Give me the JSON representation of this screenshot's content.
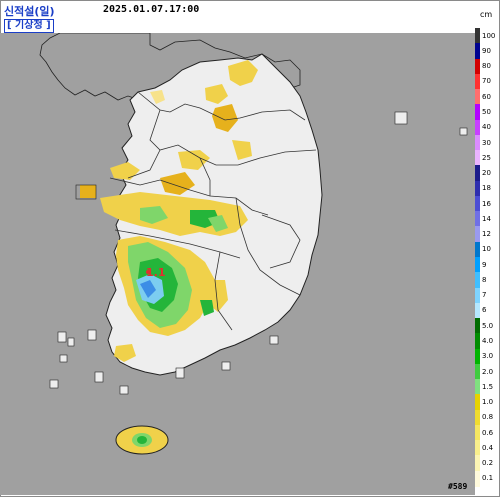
{
  "header": {
    "title": "신적설(일)",
    "timestamp": "2025.01.07.17:00",
    "agency": "[ 기상청 ]"
  },
  "map": {
    "sea_color": "#a0a0a0",
    "land_color": "#eeeeee",
    "region_labels": [
      {
        "text": "1.1",
        "color": "#e03030"
      }
    ],
    "precip_colors": {
      "light_yellow": "#f7e28a",
      "yellow": "#f0d14a",
      "orange_yellow": "#e6b11c",
      "light_green": "#7fd66a",
      "green": "#24b53a",
      "light_blue": "#7ccdf0",
      "blue": "#3c8ee6"
    }
  },
  "legend": {
    "unit": "cm",
    "entries": [
      {
        "label": "100",
        "color": "#333333"
      },
      {
        "label": "90",
        "color": "#000390"
      },
      {
        "label": "80",
        "color": "#d20000"
      },
      {
        "label": "70",
        "color": "#ff3232"
      },
      {
        "label": "60",
        "color": "#ff6e6e"
      },
      {
        "label": "50",
        "color": "#b300ff"
      },
      {
        "label": "40",
        "color": "#c840ff"
      },
      {
        "label": "30",
        "color": "#dc8cff"
      },
      {
        "label": "25",
        "color": "#eab4ff"
      },
      {
        "label": "20",
        "color": "#1b1b8a"
      },
      {
        "label": "18",
        "color": "#2e2eae"
      },
      {
        "label": "16",
        "color": "#4c4ed4"
      },
      {
        "label": "14",
        "color": "#7070e6"
      },
      {
        "label": "12",
        "color": "#9a9af0"
      },
      {
        "label": "10",
        "color": "#0077cc"
      },
      {
        "label": "9",
        "color": "#00a0ff"
      },
      {
        "label": "8",
        "color": "#40bfff"
      },
      {
        "label": "7",
        "color": "#7fd4ff"
      },
      {
        "label": "6",
        "color": "#b5e8ff"
      },
      {
        "label": "5.0",
        "color": "#006b00"
      },
      {
        "label": "4.0",
        "color": "#008c00"
      },
      {
        "label": "3.0",
        "color": "#00b400"
      },
      {
        "label": "2.0",
        "color": "#40cc40"
      },
      {
        "label": "1.5",
        "color": "#80e080"
      },
      {
        "label": "1.0",
        "color": "#e6d200"
      },
      {
        "label": "0.8",
        "color": "#f0dc30"
      },
      {
        "label": "0.6",
        "color": "#f5e660"
      },
      {
        "label": "0.4",
        "color": "#f9ef8c"
      },
      {
        "label": "0.2",
        "color": "#fcf5b4"
      },
      {
        "label": "0.1",
        "color": "#fffadc"
      }
    ]
  },
  "footer": {
    "code": "#589"
  }
}
